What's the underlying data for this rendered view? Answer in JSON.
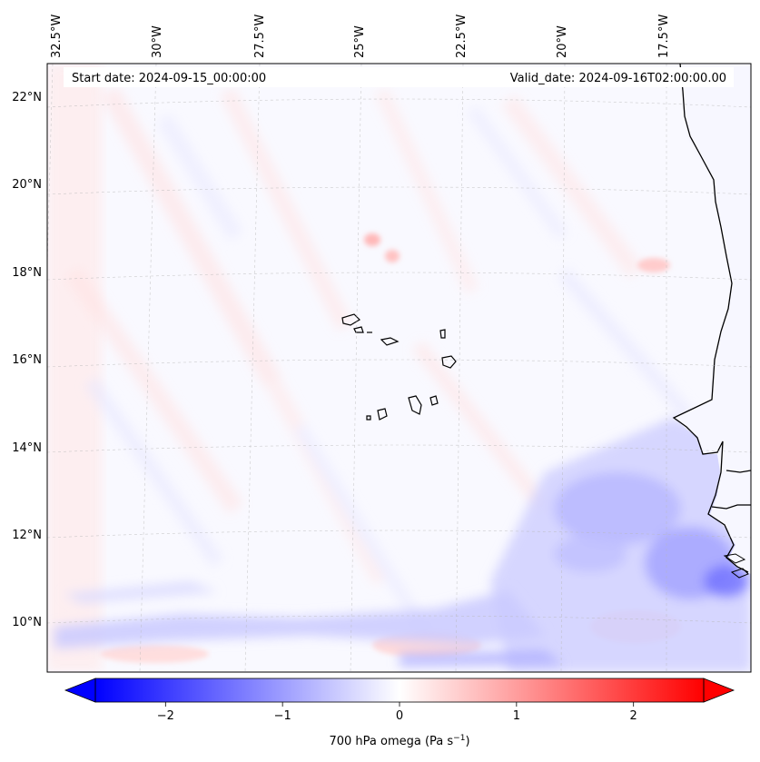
{
  "header": {
    "start_date": "Start date: 2024-09-15_00:00:00",
    "valid_date": "Valid_date: 2024-09-16T02:00:00.00"
  },
  "longitude_labels": [
    "32.5°W",
    "30°W",
    "27.5°W",
    "25°W",
    "22.5°W",
    "20°W",
    "17.5°W"
  ],
  "latitude_labels": [
    "22°N",
    "20°N",
    "18°N",
    "16°N",
    "14°N",
    "12°N",
    "10°N"
  ],
  "colorbar": {
    "label_main": "700 hPa omega (Pa s",
    "label_exp": "−1",
    "label_close": ")",
    "ticks": [
      "−2",
      "−1",
      "0",
      "1",
      "2"
    ],
    "tick_values": [
      -2,
      -1,
      0,
      1,
      2
    ],
    "range": [
      -2.6,
      2.6
    ],
    "extend": "both",
    "colormap": "bwr",
    "low_color": "#0000ff",
    "mid_color": "#ffffff",
    "high_color": "#ff0000"
  },
  "map": {
    "projection": "lambert conformal",
    "coastline_color": "#000000",
    "gridlines": "dashed light gray",
    "field": "700 hPa omega",
    "ocean_background": "#f9f9ff"
  }
}
